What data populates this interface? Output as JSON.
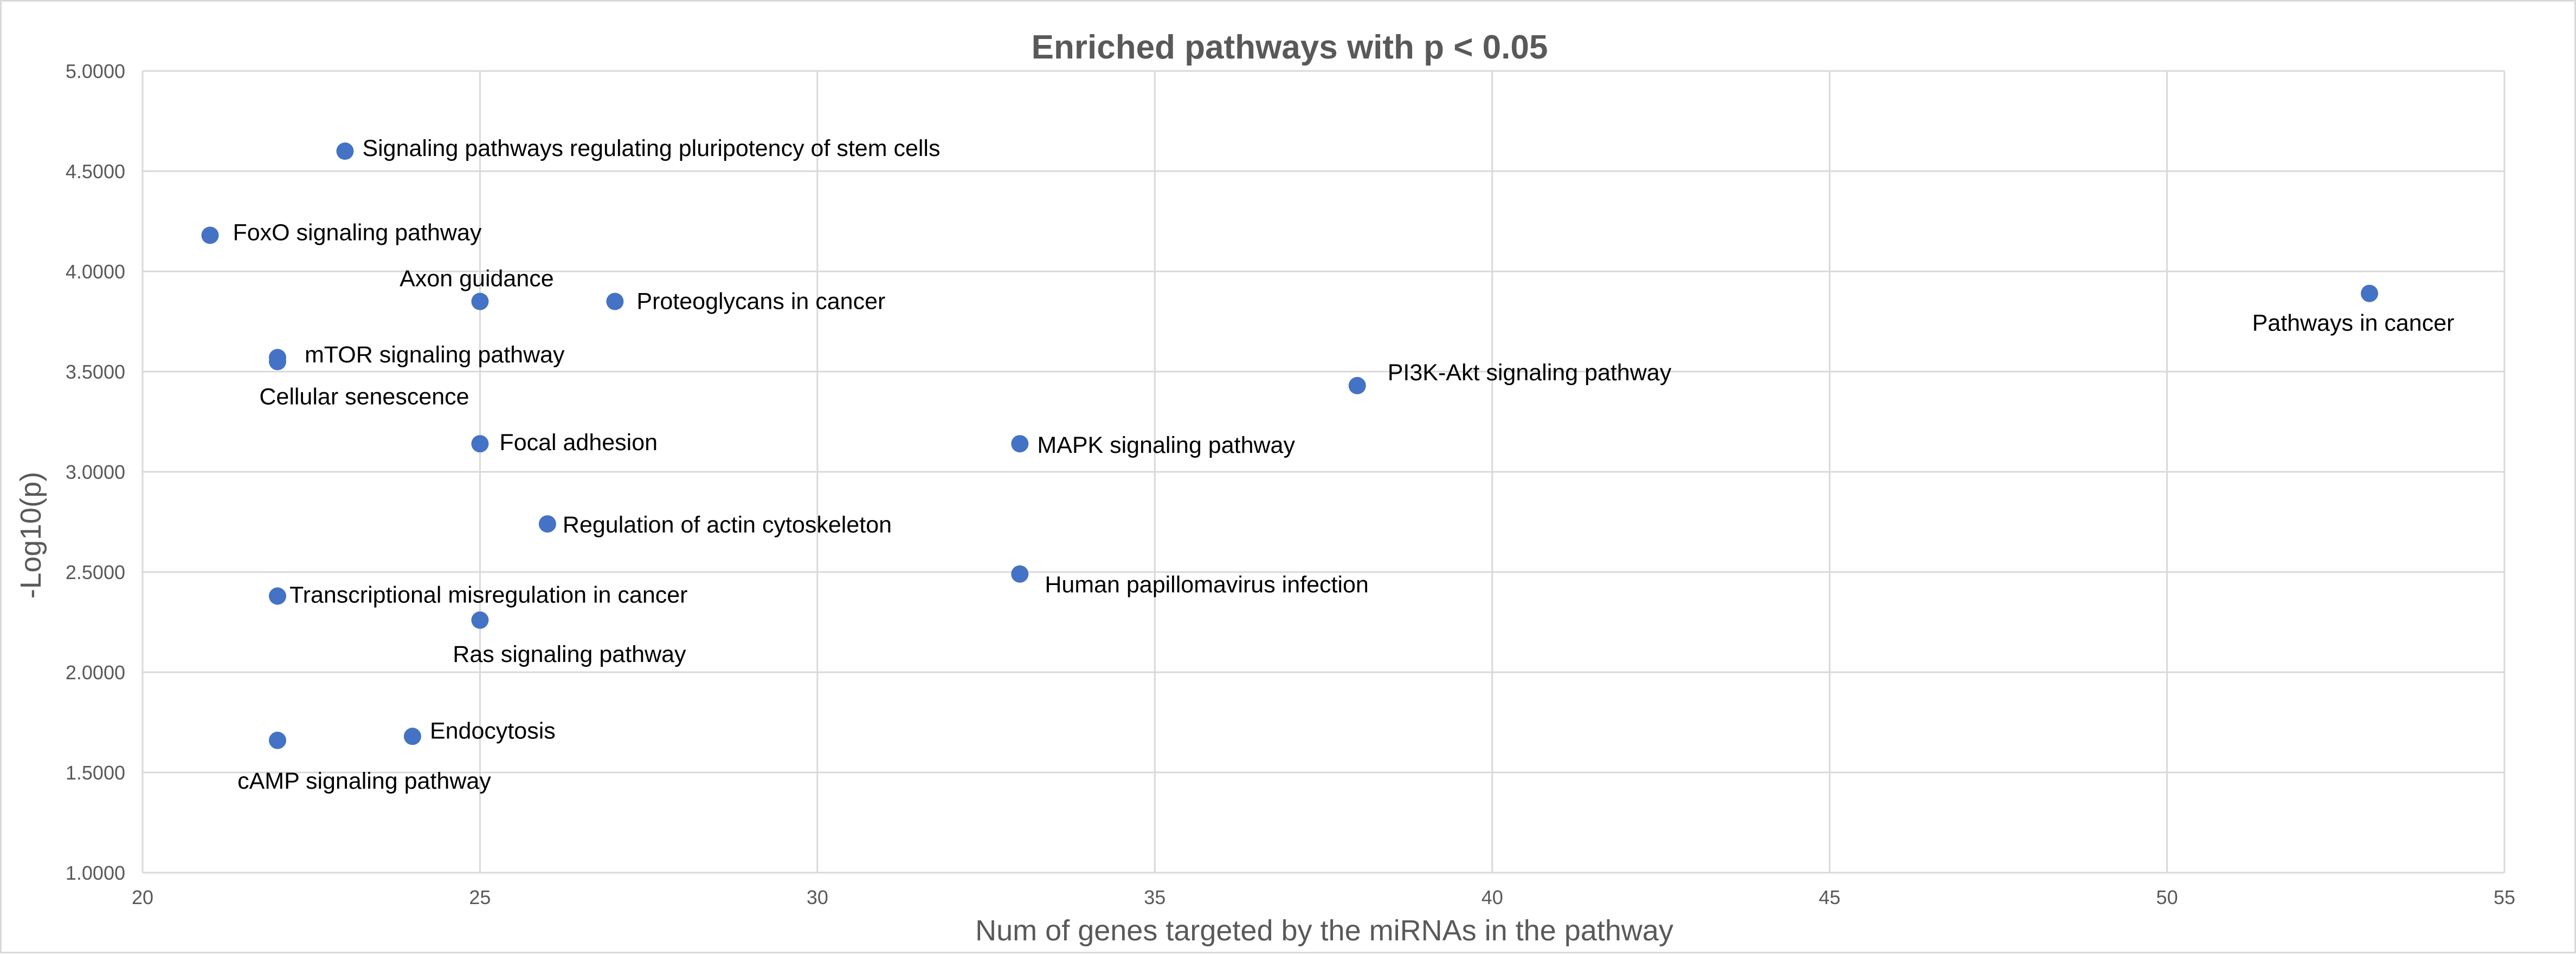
{
  "chart_data": {
    "type": "scatter",
    "title": "Enriched pathways with p < 0.05",
    "xlabel": "Num of genes targeted by the miRNAs in the pathway",
    "ylabel": "-Log10(p)",
    "xlim": [
      20,
      55
    ],
    "ylim": [
      1.0,
      5.0
    ],
    "x_ticks": [
      "20",
      "25",
      "30",
      "35",
      "40",
      "45",
      "50",
      "55"
    ],
    "y_ticks": [
      "1.0000",
      "1.5000",
      "2.0000",
      "2.5000",
      "3.0000",
      "3.5000",
      "4.0000",
      "4.5000",
      "5.0000"
    ],
    "grid": true,
    "marker_color": "#4472c4",
    "points": [
      {
        "label": "Signaling pathways regulating pluripotency of stem cells",
        "x": 23,
        "y": 4.6
      },
      {
        "label": "FoxO signaling pathway",
        "x": 21,
        "y": 4.18
      },
      {
        "label": "Axon guidance",
        "x": 25,
        "y": 3.85
      },
      {
        "label": "Proteoglycans in cancer",
        "x": 27,
        "y": 3.85
      },
      {
        "label": "Pathways in cancer",
        "x": 53,
        "y": 3.89
      },
      {
        "label": "mTOR signaling pathway",
        "x": 22,
        "y": 3.57
      },
      {
        "label": "Cellular senescence",
        "x": 22,
        "y": 3.55
      },
      {
        "label": "PI3K-Akt signaling pathway",
        "x": 38,
        "y": 3.43
      },
      {
        "label": "Focal adhesion",
        "x": 25,
        "y": 3.14
      },
      {
        "label": "MAPK signaling pathway",
        "x": 33,
        "y": 3.14
      },
      {
        "label": "Regulation of actin cytoskeleton",
        "x": 26,
        "y": 2.74
      },
      {
        "label": "Human papillomavirus infection",
        "x": 33,
        "y": 2.49
      },
      {
        "label": "Transcriptional misregulation in cancer",
        "x": 22,
        "y": 2.38
      },
      {
        "label": "Ras signaling pathway",
        "x": 25,
        "y": 2.26
      },
      {
        "label": "Endocytosis",
        "x": 24,
        "y": 1.68
      },
      {
        "label": "cAMP signaling pathway",
        "x": 22,
        "y": 1.66
      }
    ]
  }
}
